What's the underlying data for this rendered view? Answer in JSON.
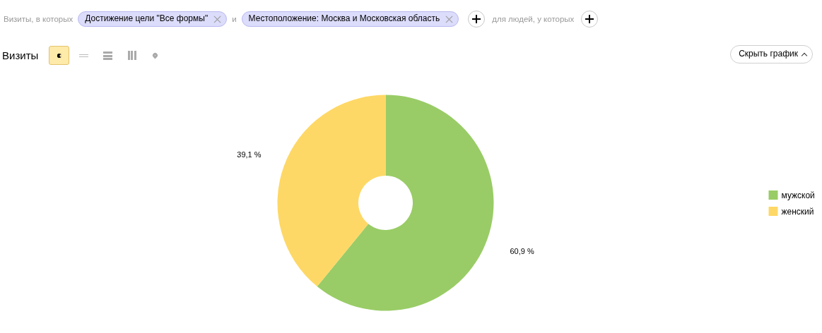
{
  "chart_data": {
    "type": "donut",
    "title": "Визиты",
    "categories": [
      "мужской",
      "женский"
    ],
    "values": [
      60.9,
      39.1
    ],
    "colors": [
      "#99cc66",
      "#fed866"
    ],
    "value_labels": [
      "60,9 %",
      "39,1 %"
    ],
    "legend": "right",
    "annotations": [
      "Визиты, в которых",
      "Достижение цели \"Все формы\"",
      "и",
      "Местоположение: Москва и Московская область",
      "для людей, у которых",
      "Скрыть график"
    ]
  }
}
